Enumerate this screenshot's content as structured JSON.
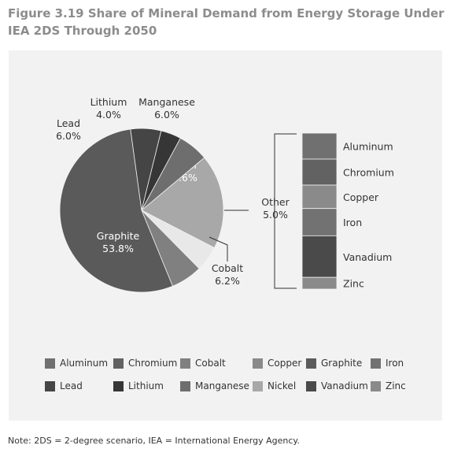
{
  "title": "Figure 3.19 Share of Mineral Demand from Energy Storage Under IEA 2DS Through 2050",
  "note": "Note: 2DS = 2-degree scenario, IEA = International Energy Agency.",
  "chart_data": {
    "type": "pie",
    "title": "Figure 3.19 Share of Mineral Demand from Energy Storage Under IEA 2DS Through 2050",
    "slices": [
      {
        "name": "Nickel",
        "value": 18.6,
        "label": "18.6%",
        "color": "#a8a8a8",
        "text_color": "#ffffff"
      },
      {
        "name": "Other",
        "value": 5.0,
        "label": "5.0%",
        "color": "#e8e8e8",
        "text_color": "#333333"
      },
      {
        "name": "Cobalt",
        "value": 6.2,
        "label": "6.2%",
        "color": "#808080",
        "text_color": "#333333"
      },
      {
        "name": "Graphite",
        "value": 53.8,
        "label": "53.8%",
        "color": "#5a5a5a",
        "text_color": "#ffffff"
      },
      {
        "name": "Lead",
        "value": 6.0,
        "label": "6.0%",
        "color": "#454545",
        "text_color": "#333333"
      },
      {
        "name": "Lithium",
        "value": 4.0,
        "label": "4.0%",
        "color": "#363636",
        "text_color": "#333333"
      },
      {
        "name": "Manganese",
        "value": 6.0,
        "label": "6.0%",
        "color": "#6e6e6e",
        "text_color": "#333333"
      }
    ],
    "other_breakdown": {
      "label": "Other",
      "value_label": "5.0%",
      "items": [
        {
          "name": "Aluminum",
          "weight": 1.0,
          "color": "#707070"
        },
        {
          "name": "Chromium",
          "weight": 1.0,
          "color": "#626262"
        },
        {
          "name": "Copper",
          "weight": 0.9,
          "color": "#8a8a8a"
        },
        {
          "name": "Iron",
          "weight": 1.05,
          "color": "#727272"
        },
        {
          "name": "Vanadium",
          "weight": 1.6,
          "color": "#4a4a4a"
        },
        {
          "name": "Zinc",
          "weight": 0.45,
          "color": "#8a8a8a"
        }
      ]
    },
    "legend": [
      {
        "name": "Aluminum",
        "color": "#707070"
      },
      {
        "name": "Chromium",
        "color": "#626262"
      },
      {
        "name": "Cobalt",
        "color": "#808080"
      },
      {
        "name": "Copper",
        "color": "#8a8a8a"
      },
      {
        "name": "Graphite",
        "color": "#5a5a5a"
      },
      {
        "name": "Iron",
        "color": "#727272"
      },
      {
        "name": "Lead",
        "color": "#454545"
      },
      {
        "name": "Lithium",
        "color": "#363636"
      },
      {
        "name": "Manganese",
        "color": "#6e6e6e"
      },
      {
        "name": "Nickel",
        "color": "#a8a8a8"
      },
      {
        "name": "Vanadium",
        "color": "#4a4a4a"
      },
      {
        "name": "Zinc",
        "color": "#8a8a8a"
      }
    ]
  }
}
